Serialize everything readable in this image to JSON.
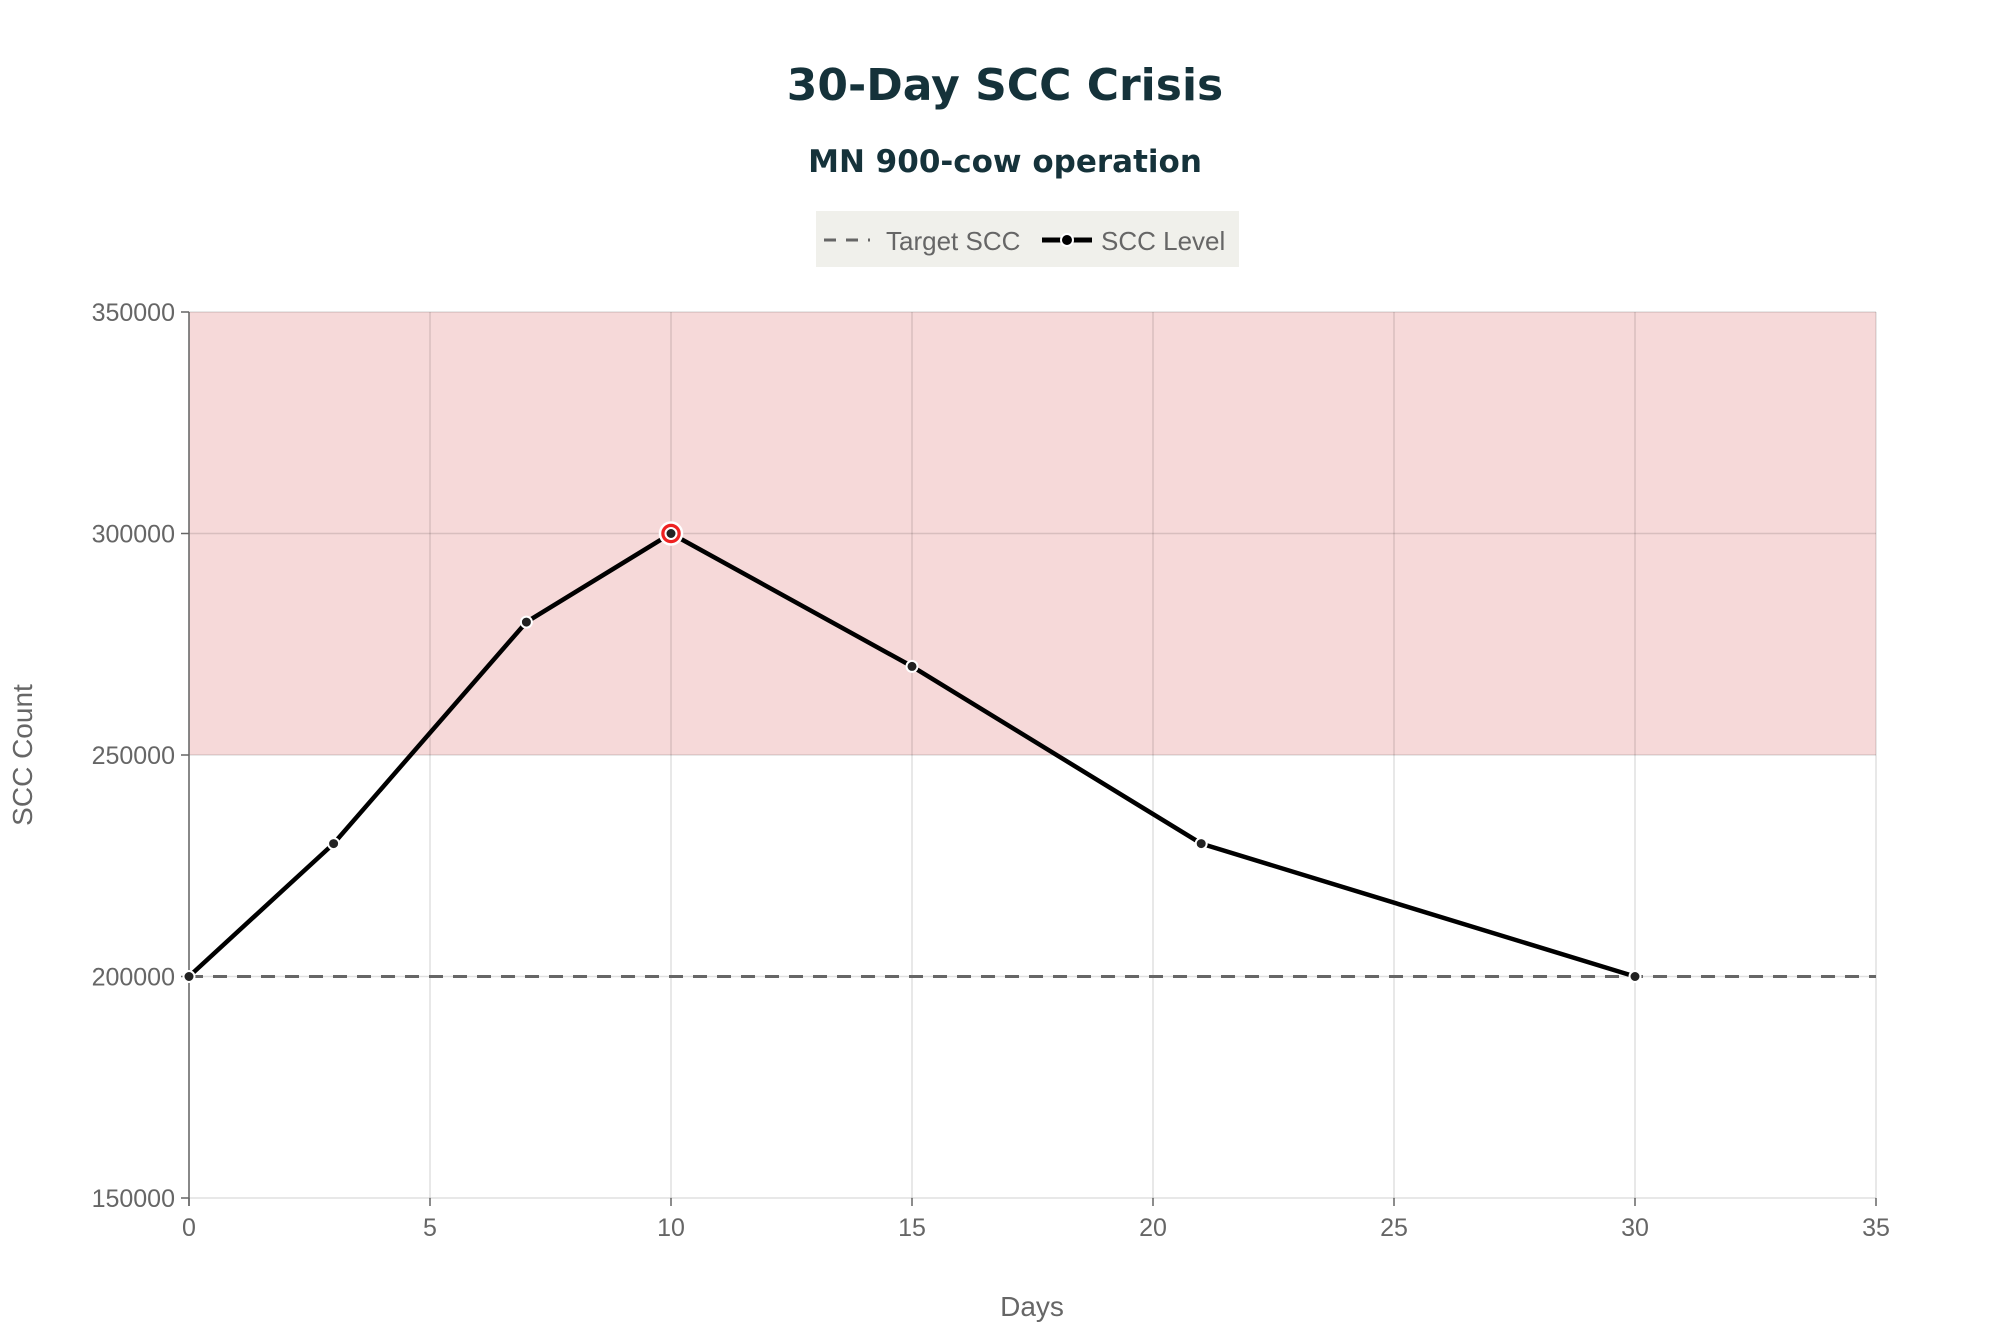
{
  "chart_data": {
    "type": "line",
    "title": "30-Day SCC Crisis",
    "subtitle": "MN 900-cow operation",
    "xlabel": "Days",
    "ylabel": "SCC Count",
    "xlim": [
      0,
      35
    ],
    "ylim": [
      150000,
      350000
    ],
    "x_ticks": [
      0,
      5,
      10,
      15,
      20,
      25,
      30,
      35
    ],
    "y_ticks": [
      150000,
      200000,
      250000,
      300000,
      350000
    ],
    "grid": true,
    "legend_position": "top-center",
    "legend": [
      "Target SCC",
      "SCC Level"
    ],
    "shaded_region": {
      "y_from": 250000,
      "y_to": 350000,
      "color": "#f6d9d9"
    },
    "series": [
      {
        "name": "Target SCC",
        "style": "dashed",
        "color": "#666666",
        "x": [
          0,
          35
        ],
        "y": [
          200000,
          200000
        ]
      },
      {
        "name": "SCC Level",
        "style": "solid-markers",
        "color": "#000000",
        "x": [
          0,
          3,
          7,
          10,
          15,
          21,
          30
        ],
        "y": [
          200000,
          230000,
          280000,
          300000,
          270000,
          230000,
          200000
        ]
      }
    ],
    "highlight_point": {
      "x": 10,
      "y": 300000,
      "color": "#ee2222"
    }
  }
}
